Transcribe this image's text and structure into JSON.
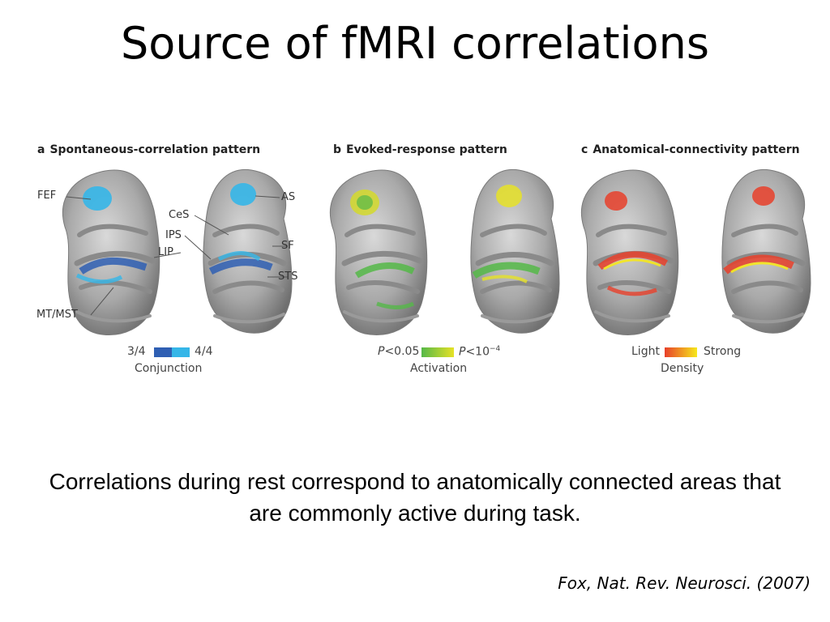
{
  "slide": {
    "title": "Source of fMRI correlations",
    "caption": "Correlations during rest correspond to anatomically connected areas that are commonly active during task.",
    "citation": "Fox, Nat. Rev. Neurosci. (2007)"
  },
  "figure": {
    "panels": [
      {
        "letter": "a",
        "title": "Spontaneous-correlation pattern",
        "region_labels": [
          "FEF",
          "AS",
          "CeS",
          "IPS",
          "LIP",
          "SF",
          "STS",
          "MT/MST"
        ],
        "legend": {
          "low": "3/4",
          "high": "4/4",
          "title": "Conjunction",
          "colors": [
            "#2f5fb3",
            "#35b6e8"
          ]
        }
      },
      {
        "letter": "b",
        "title": "Evoked-response pattern",
        "legend": {
          "low_prefix": "P",
          "low": "<0.05",
          "high_prefix": "P",
          "high": "<10",
          "high_sup": "−4",
          "title": "Activation",
          "colors": [
            "#55b848",
            "#e6e227"
          ]
        }
      },
      {
        "letter": "c",
        "title": "Anatomical-connectivity pattern",
        "legend": {
          "low": "Light",
          "high": "Strong",
          "title": "Density",
          "colors": [
            "#e8402a",
            "#f6e81c"
          ]
        }
      }
    ]
  }
}
